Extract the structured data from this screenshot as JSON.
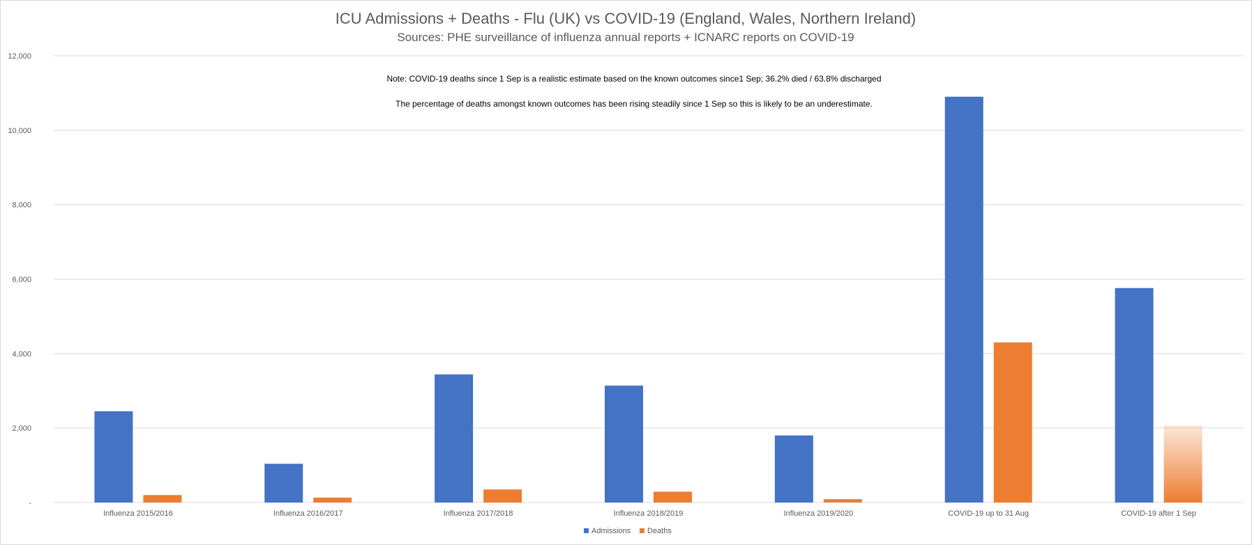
{
  "colors": {
    "admissions": "#4472C4",
    "deaths": "#ED7D31",
    "gridline": "#d9d9d9",
    "text": "#595959"
  },
  "chart_data": {
    "type": "bar",
    "title": "ICU Admissions + Deaths - Flu (UK) vs COVID-19 (England, Wales, Northern Ireland)",
    "subtitle": "Sources: PHE surveillance of influenza annual reports + ICNARC reports on COVID-19",
    "categories": [
      "Influenza 2015/2016",
      "Influenza 2016/2017",
      "Influenza 2017/2018",
      "Influenza 2018/2019",
      "Influenza 2019/2020",
      "COVID-19 up to 31 Aug",
      "COVID-19 after 1 Sep"
    ],
    "series": [
      {
        "name": "Admissions",
        "values": [
          2450,
          1040,
          3440,
          3140,
          1800,
          10900,
          5760
        ]
      },
      {
        "name": "Deaths",
        "values": [
          200,
          130,
          350,
          290,
          90,
          4300,
          2070
        ]
      }
    ],
    "estimated": {
      "series": "Deaths",
      "category": "COVID-19 after 1 Sep"
    },
    "ylim": [
      0,
      12000
    ],
    "yticks": [
      {
        "value": 0,
        "label": "-"
      },
      {
        "value": 2000,
        "label": "2,000"
      },
      {
        "value": 4000,
        "label": "4,000"
      },
      {
        "value": 6000,
        "label": "6,000"
      },
      {
        "value": 8000,
        "label": "8,000"
      },
      {
        "value": 10000,
        "label": "10,000"
      },
      {
        "value": 12000,
        "label": "12,000"
      }
    ],
    "grid": true,
    "legend_position": "bottom",
    "annotations": [
      "Note: COVID-19 deaths since 1 Sep is a  realistic estimate based on the known outcomes since1 Sep; 36.2% died / 63.8% discharged",
      "The percentage of deaths amongst known outcomes has been rising steadily since 1 Sep so this is likely to be an underestimate."
    ]
  }
}
